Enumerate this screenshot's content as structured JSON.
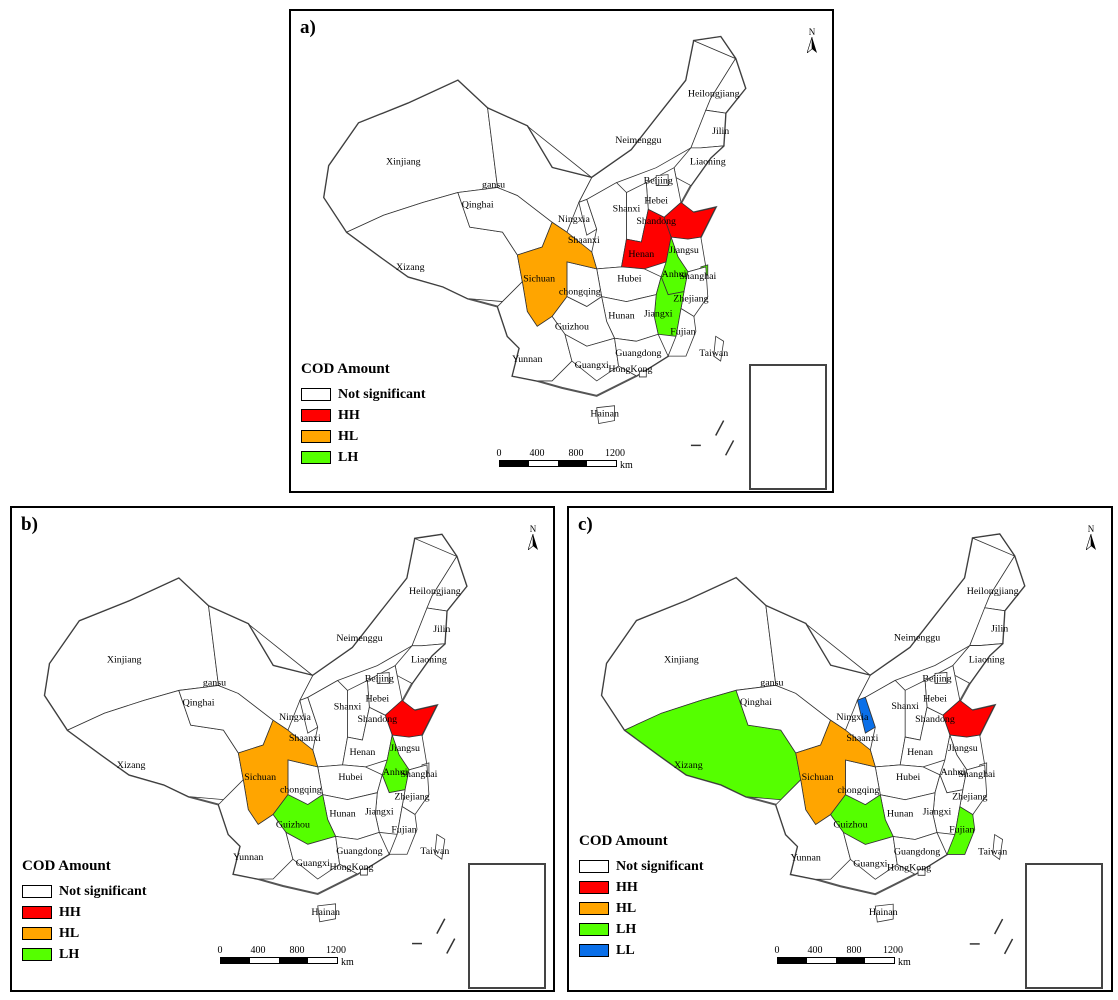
{
  "panels": [
    {
      "id": "a",
      "label": "a)",
      "legend_title": "COD Amount",
      "legend": [
        {
          "label": "Not significant",
          "color": "#ffffff"
        },
        {
          "label": "HH",
          "color": "#ff0000"
        },
        {
          "label": "HL",
          "color": "#ffa500"
        },
        {
          "label": "LH",
          "color": "#55ff00"
        }
      ],
      "highlighted": {
        "Shandong": "HH",
        "Henan": "HH",
        "Sichuan": "HL",
        "Anhui": "LH",
        "Jiangxi": "LH",
        "Shanghai": "LH"
      }
    },
    {
      "id": "b",
      "label": "b)",
      "legend_title": "COD Amount",
      "legend": [
        {
          "label": "Not significant",
          "color": "#ffffff"
        },
        {
          "label": "HH",
          "color": "#ff0000"
        },
        {
          "label": "HL",
          "color": "#ffa500"
        },
        {
          "label": "LH",
          "color": "#55ff00"
        }
      ],
      "highlighted": {
        "Shandong": "HH",
        "Sichuan": "HL",
        "Anhui": "LH",
        "Guizhou": "LH"
      }
    },
    {
      "id": "c",
      "label": "c)",
      "legend_title": "COD Amount",
      "legend": [
        {
          "label": "Not significant",
          "color": "#ffffff"
        },
        {
          "label": "HH",
          "color": "#ff0000"
        },
        {
          "label": "HL",
          "color": "#ffa500"
        },
        {
          "label": "LH",
          "color": "#55ff00"
        },
        {
          "label": "LL",
          "color": "#0a6fe8"
        }
      ],
      "highlighted": {
        "Shandong": "HH",
        "Sichuan": "HL",
        "Xizang": "LH",
        "Guizhou": "LH",
        "Fujian": "LH",
        "Ningxia": "LL"
      }
    }
  ],
  "class_colors": {
    "HH": "#ff0000",
    "HL": "#ffa500",
    "LH": "#55ff00",
    "LL": "#0a6fe8"
  },
  "province_labels": {
    "Xinjiang": "Xinjiang",
    "Xizang": "Xizang",
    "Qinghai": "Qinghai",
    "Gansu": "gansu",
    "Neimenggu": "Neimenggu",
    "Heilongjiang": "Heilongjiang",
    "Jilin": "Jilin",
    "Liaoning": "Liaoning",
    "Beijing": "Beijing",
    "Hebei": "Hebei",
    "Shandong": "Shandong",
    "Shanxi": "Shanxi",
    "Ningxia": "Ningxia",
    "Shaanxi": "Shaanxi",
    "Henan": "Henan",
    "Jiangsu": "Jiangsu",
    "Anhui": "Anhui",
    "Shanghai": "Shanghai",
    "Hubei": "Hubei",
    "Sichuan": "Sichuan",
    "Chongqing": "chongqing",
    "Zhejiang": "Zhejiang",
    "Jiangxi": "Jiangxi",
    "Hunan": "Hunan",
    "Guizhou": "Guizhou",
    "Fujian": "Fujian",
    "Taiwan": "Taiwan",
    "Yunnan": "Yunnan",
    "Guangxi": "Guangxi",
    "Guangdong": "Guangdong",
    "HongKong": "HongKong",
    "Hainan": "Hainan"
  },
  "scale": {
    "ticks": [
      "0",
      "400",
      "800",
      "1200"
    ],
    "unit": "km"
  },
  "north_label": "N"
}
